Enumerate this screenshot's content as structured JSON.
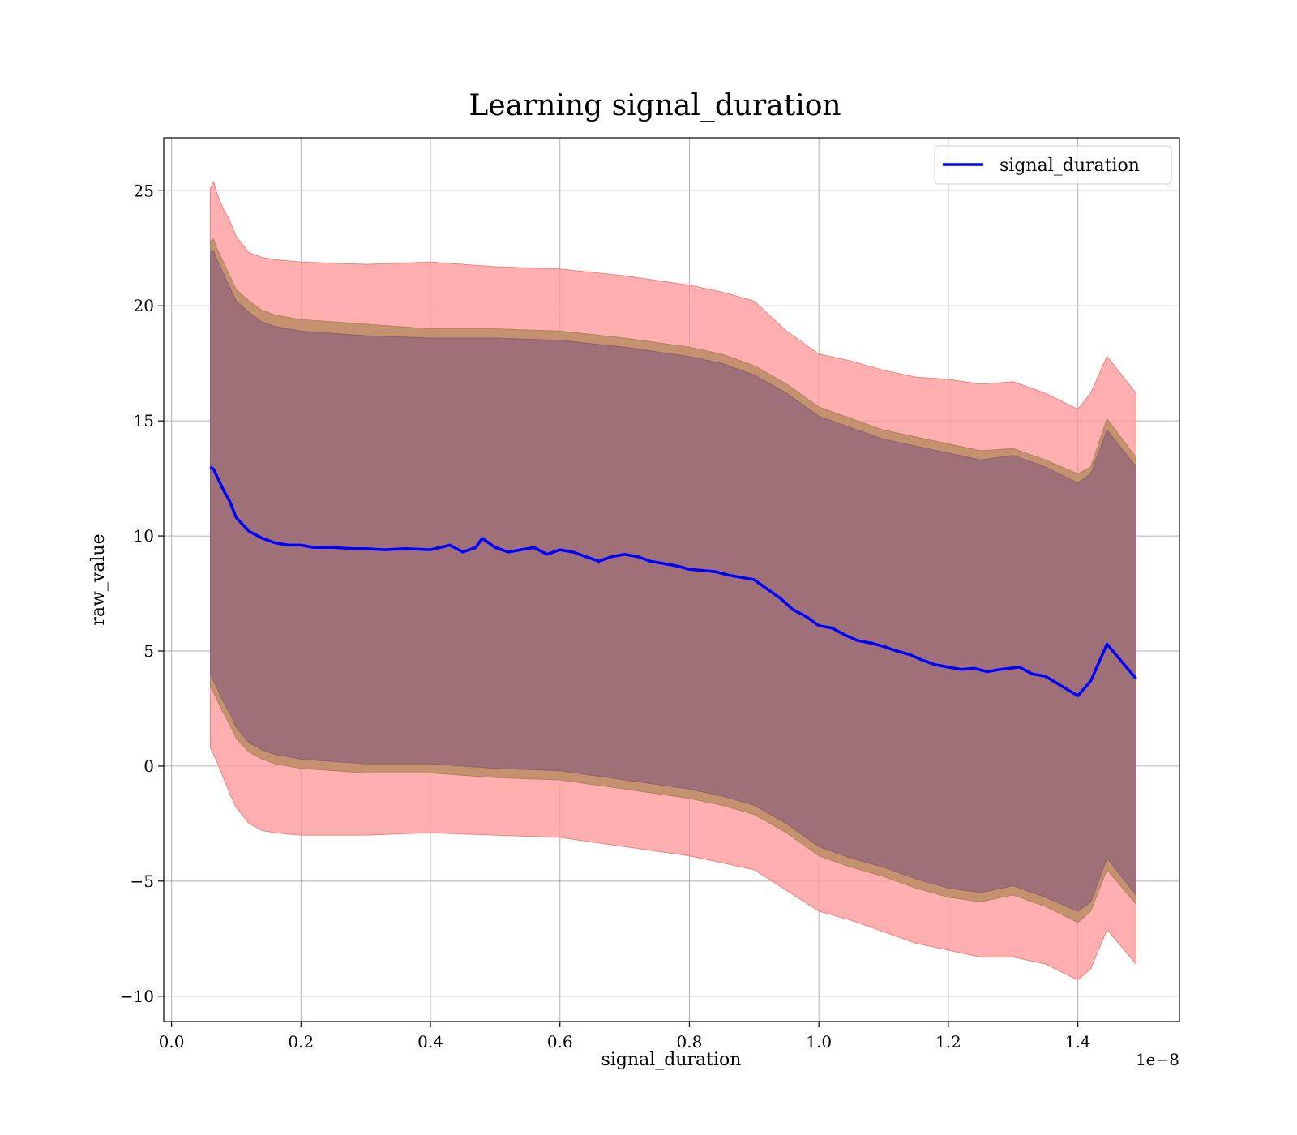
{
  "chart_data": {
    "type": "line",
    "title": "Learning signal_duration",
    "xlabel": "signal_duration",
    "ylabel": "raw_value",
    "x_offset_text": "1e−8",
    "x_scale_exponent": -8,
    "xlim": [
      -0.012,
      1.557
    ],
    "ylim": [
      -11.1,
      27.3
    ],
    "xticks": [
      0.0,
      0.2,
      0.4,
      0.6,
      0.8,
      1.0,
      1.2,
      1.4
    ],
    "xtick_labels": [
      "0.0",
      "0.2",
      "0.4",
      "0.6",
      "0.8",
      "1.0",
      "1.2",
      "1.4"
    ],
    "yticks": [
      -10,
      -5,
      0,
      5,
      10,
      15,
      20,
      25
    ],
    "ytick_labels": [
      "−10",
      "−5",
      "0",
      "5",
      "10",
      "15",
      "20",
      "25"
    ],
    "grid": true,
    "legend_position": "top-right",
    "colors": {
      "line": "#0000ff",
      "band_outer": "#ff9999",
      "band_middle": "#c4926e",
      "band_inner": "#a07078"
    },
    "series": [
      {
        "name": "signal_duration",
        "x": [
          0.06,
          0.065,
          0.07,
          0.08,
          0.09,
          0.1,
          0.11,
          0.12,
          0.14,
          0.16,
          0.18,
          0.2,
          0.22,
          0.25,
          0.28,
          0.3,
          0.33,
          0.36,
          0.4,
          0.43,
          0.45,
          0.47,
          0.48,
          0.5,
          0.52,
          0.54,
          0.56,
          0.58,
          0.6,
          0.62,
          0.64,
          0.66,
          0.68,
          0.7,
          0.72,
          0.74,
          0.76,
          0.78,
          0.8,
          0.82,
          0.84,
          0.86,
          0.88,
          0.9,
          0.92,
          0.94,
          0.96,
          0.98,
          1.0,
          1.02,
          1.04,
          1.06,
          1.08,
          1.1,
          1.12,
          1.14,
          1.16,
          1.18,
          1.2,
          1.22,
          1.24,
          1.26,
          1.28,
          1.31,
          1.33,
          1.35,
          1.4,
          1.42,
          1.445,
          1.49
        ],
        "y": [
          13.0,
          12.9,
          12.6,
          12.0,
          11.5,
          10.8,
          10.5,
          10.2,
          9.9,
          9.7,
          9.6,
          9.6,
          9.5,
          9.5,
          9.45,
          9.45,
          9.4,
          9.45,
          9.4,
          9.6,
          9.3,
          9.5,
          9.9,
          9.5,
          9.3,
          9.4,
          9.5,
          9.2,
          9.4,
          9.3,
          9.1,
          8.9,
          9.1,
          9.2,
          9.1,
          8.9,
          8.8,
          8.7,
          8.55,
          8.5,
          8.45,
          8.3,
          8.2,
          8.1,
          7.7,
          7.3,
          6.8,
          6.5,
          6.1,
          6.0,
          5.7,
          5.45,
          5.35,
          5.2,
          5.0,
          4.85,
          4.6,
          4.4,
          4.3,
          4.2,
          4.25,
          4.1,
          4.2,
          4.3,
          4.0,
          3.9,
          3.05,
          3.7,
          5.3,
          3.8
        ]
      }
    ],
    "bands": {
      "x": [
        0.06,
        0.065,
        0.07,
        0.08,
        0.09,
        0.1,
        0.12,
        0.14,
        0.16,
        0.2,
        0.3,
        0.4,
        0.5,
        0.6,
        0.7,
        0.8,
        0.85,
        0.9,
        0.95,
        1.0,
        1.05,
        1.1,
        1.15,
        1.2,
        1.25,
        1.3,
        1.35,
        1.4,
        1.42,
        1.445,
        1.49
      ],
      "outer_upper": [
        25.1,
        25.4,
        24.9,
        24.2,
        23.7,
        23.0,
        22.3,
        22.1,
        22.0,
        21.9,
        21.8,
        21.9,
        21.7,
        21.6,
        21.3,
        20.9,
        20.6,
        20.2,
        18.9,
        17.9,
        17.6,
        17.2,
        16.9,
        16.8,
        16.6,
        16.7,
        16.2,
        15.5,
        16.2,
        17.8,
        16.2
      ],
      "outer_lower": [
        0.8,
        0.5,
        0.2,
        -0.5,
        -1.2,
        -1.8,
        -2.5,
        -2.8,
        -2.9,
        -3.0,
        -3.0,
        -2.9,
        -3.0,
        -3.1,
        -3.5,
        -3.9,
        -4.2,
        -4.5,
        -5.4,
        -6.3,
        -6.7,
        -7.2,
        -7.7,
        -8.0,
        -8.3,
        -8.3,
        -8.6,
        -9.3,
        -8.8,
        -7.1,
        -8.6
      ],
      "middle_upper": [
        22.8,
        22.9,
        22.5,
        21.9,
        21.3,
        20.7,
        20.2,
        19.8,
        19.6,
        19.4,
        19.2,
        19.0,
        19.0,
        18.9,
        18.6,
        18.2,
        17.9,
        17.4,
        16.6,
        15.6,
        15.1,
        14.6,
        14.3,
        14.0,
        13.7,
        13.8,
        13.3,
        12.7,
        13.0,
        15.1,
        13.4
      ],
      "middle_lower": [
        3.5,
        3.2,
        2.9,
        2.3,
        1.8,
        1.2,
        0.6,
        0.3,
        0.1,
        -0.1,
        -0.3,
        -0.3,
        -0.5,
        -0.6,
        -1.0,
        -1.4,
        -1.7,
        -2.1,
        -2.9,
        -3.9,
        -4.4,
        -4.8,
        -5.3,
        -5.7,
        -5.9,
        -5.6,
        -6.1,
        -6.8,
        -6.3,
        -4.5,
        -6.0
      ],
      "inner_upper": [
        22.3,
        22.4,
        22.0,
        21.4,
        20.8,
        20.2,
        19.7,
        19.3,
        19.1,
        18.9,
        18.7,
        18.6,
        18.6,
        18.5,
        18.2,
        17.8,
        17.5,
        17.0,
        16.2,
        15.2,
        14.7,
        14.2,
        13.9,
        13.6,
        13.3,
        13.5,
        13.0,
        12.3,
        12.7,
        14.6,
        13.0
      ],
      "inner_lower": [
        4.0,
        3.7,
        3.4,
        2.8,
        2.3,
        1.7,
        1.0,
        0.7,
        0.5,
        0.3,
        0.1,
        0.1,
        -0.1,
        -0.2,
        -0.6,
        -1.0,
        -1.3,
        -1.7,
        -2.5,
        -3.5,
        -4.0,
        -4.4,
        -4.9,
        -5.3,
        -5.5,
        -5.2,
        -5.7,
        -6.3,
        -5.9,
        -4.0,
        -5.6
      ]
    }
  }
}
